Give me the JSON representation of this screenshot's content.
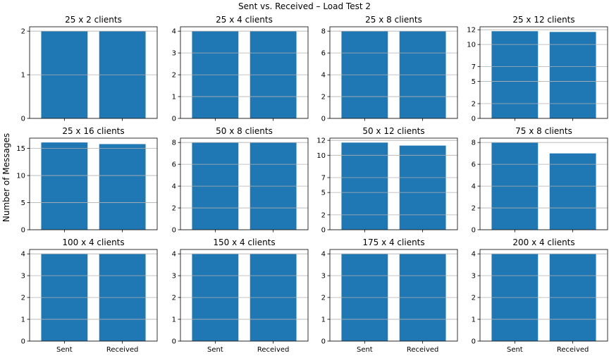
{
  "chart_data": {
    "type": "bar",
    "title": "Sent vs. Received – Load Test 2",
    "ylabel": "Number of Messages",
    "categories": [
      "Sent",
      "Received"
    ],
    "bar_color": "#1f77b4",
    "grid": "y",
    "subplots": [
      {
        "title": "25 x 2 clients",
        "values": [
          2,
          2
        ],
        "ylim": [
          0,
          2.1
        ],
        "yticks": [
          0,
          1,
          2
        ]
      },
      {
        "title": "25 x 4 clients",
        "values": [
          4,
          4
        ],
        "ylim": [
          0,
          4.2
        ],
        "yticks": [
          0,
          1,
          2,
          3,
          4
        ]
      },
      {
        "title": "25 x 8 clients",
        "values": [
          8,
          8
        ],
        "ylim": [
          0,
          8.4
        ],
        "yticks": [
          0,
          2,
          4,
          6,
          8
        ]
      },
      {
        "title": "25 x 12 clients",
        "values": [
          11.8,
          11.7
        ],
        "ylim": [
          0,
          12.4
        ],
        "yticks": [
          0,
          2,
          5,
          7,
          10,
          12
        ]
      },
      {
        "title": "25 x 16 clients",
        "values": [
          16.1,
          15.8
        ],
        "ylim": [
          0,
          16.9
        ],
        "yticks": [
          0,
          5,
          10,
          15
        ]
      },
      {
        "title": "50 x 8 clients",
        "values": [
          8,
          8
        ],
        "ylim": [
          0,
          8.4
        ],
        "yticks": [
          0,
          2,
          4,
          6,
          8
        ]
      },
      {
        "title": "50 x 12 clients",
        "values": [
          11.7,
          11.3
        ],
        "ylim": [
          0,
          12.3
        ],
        "yticks": [
          0,
          2,
          5,
          7,
          10,
          12
        ]
      },
      {
        "title": "75 x 8 clients",
        "values": [
          8,
          7
        ],
        "ylim": [
          0,
          8.4
        ],
        "yticks": [
          0,
          2,
          4,
          6,
          8
        ]
      },
      {
        "title": "100 x 4 clients",
        "values": [
          4,
          4
        ],
        "ylim": [
          0,
          4.2
        ],
        "yticks": [
          0,
          1,
          2,
          3,
          4
        ]
      },
      {
        "title": "150 x 4 clients",
        "values": [
          4,
          4
        ],
        "ylim": [
          0,
          4.2
        ],
        "yticks": [
          0,
          1,
          2,
          3,
          4
        ]
      },
      {
        "title": "175 x 4 clients",
        "values": [
          4,
          4
        ],
        "ylim": [
          0,
          4.2
        ],
        "yticks": [
          0,
          1,
          2,
          3,
          4
        ]
      },
      {
        "title": "200 x 4 clients",
        "values": [
          4,
          4
        ],
        "ylim": [
          0,
          4.2
        ],
        "yticks": [
          0,
          1,
          2,
          3,
          4
        ]
      }
    ]
  }
}
